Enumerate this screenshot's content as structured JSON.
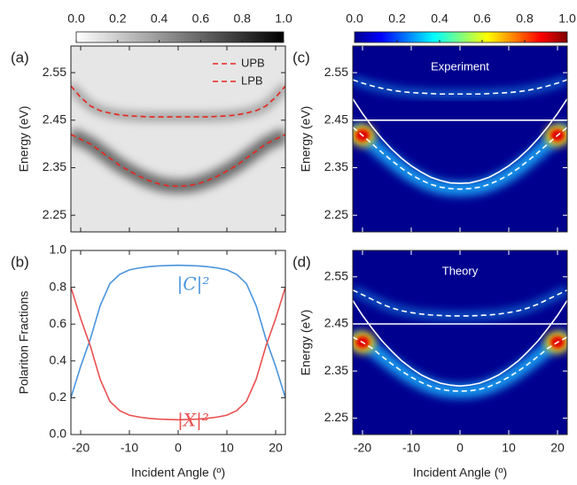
{
  "chart_data": [
    {
      "type": "heatmap",
      "panel_label": "(a)",
      "ylabel": "Energy (eV)",
      "colormap": "gray_r",
      "legend": "upper right",
      "colorbar_ticks": [
        {
          "value": 0,
          "label": "0.0"
        },
        {
          "value": 0.2,
          "label": "0.2"
        },
        {
          "value": 0.4,
          "label": "0.4"
        },
        {
          "value": 0.6,
          "label": "0.6"
        },
        {
          "value": 0.8,
          "label": "0.8"
        },
        {
          "value": 1,
          "label": "1.0"
        }
      ],
      "xlim": [
        -22,
        22
      ],
      "xticks": [
        -20,
        -10,
        0,
        10,
        20
      ],
      "show_xtick_labels": false,
      "ylim": [
        2.215,
        2.606
      ],
      "yticks": [
        2.25,
        2.35,
        2.45,
        2.55
      ],
      "x": [
        -22,
        -20,
        -18,
        -16,
        -14,
        -12,
        -10,
        -8,
        -6,
        -4,
        -2,
        0,
        2,
        4,
        6,
        8,
        10,
        12,
        14,
        16,
        18,
        20,
        22
      ],
      "series": [
        {
          "name": "UPB",
          "color": "#e8261e",
          "dash": true,
          "values": [
            2.522,
            2.498,
            2.48,
            2.47,
            2.465,
            2.461,
            2.459,
            2.458,
            2.457,
            2.457,
            2.457,
            2.457,
            2.457,
            2.457,
            2.457,
            2.458,
            2.459,
            2.461,
            2.465,
            2.47,
            2.48,
            2.498,
            2.522
          ]
        },
        {
          "name": "LPB",
          "color": "#e8261e",
          "dash": true,
          "values": [
            2.42,
            2.41,
            2.4,
            2.385,
            2.37,
            2.355,
            2.343,
            2.332,
            2.323,
            2.316,
            2.312,
            2.311,
            2.312,
            2.316,
            2.323,
            2.332,
            2.343,
            2.355,
            2.37,
            2.385,
            2.4,
            2.41,
            2.42
          ]
        }
      ]
    },
    {
      "type": "line",
      "panel_label": "(b)",
      "ylabel": "Polariton Fractions",
      "xlabel": "Incident Angle (º)",
      "xlim": [
        -22,
        22
      ],
      "xticks": [
        -20,
        -10,
        0,
        10,
        20
      ],
      "show_xtick_labels": true,
      "ylim": [
        0,
        1
      ],
      "yticks": [
        {
          "value": 0,
          "label": "0.0"
        },
        {
          "value": 0.2,
          "label": "0.2"
        },
        {
          "value": 0.4,
          "label": "0.4"
        },
        {
          "value": 0.6,
          "label": "0.6"
        },
        {
          "value": 0.8,
          "label": "0.8"
        },
        {
          "value": 1,
          "label": "1.0"
        }
      ],
      "x": [
        -22,
        -20,
        -18,
        -16,
        -14,
        -12,
        -10,
        -8,
        -6,
        -4,
        -2,
        0,
        2,
        4,
        6,
        8,
        10,
        12,
        14,
        16,
        18,
        20,
        22
      ],
      "series": [
        {
          "name": "|C|²",
          "color": "#4a94dc",
          "values": [
            0.2,
            0.37,
            0.52,
            0.7,
            0.82,
            0.87,
            0.895,
            0.905,
            0.912,
            0.916,
            0.918,
            0.92,
            0.918,
            0.916,
            0.912,
            0.905,
            0.895,
            0.87,
            0.82,
            0.7,
            0.52,
            0.37,
            0.2
          ]
        },
        {
          "name": "|X|²",
          "color": "#ea5050",
          "values": [
            0.8,
            0.63,
            0.48,
            0.3,
            0.18,
            0.13,
            0.105,
            0.095,
            0.088,
            0.084,
            0.082,
            0.08,
            0.082,
            0.084,
            0.088,
            0.095,
            0.105,
            0.13,
            0.18,
            0.3,
            0.48,
            0.63,
            0.8
          ]
        }
      ]
    },
    {
      "type": "heatmap",
      "panel_label": "(c)",
      "ylabel": "Energy (eV)",
      "colormap": "jet",
      "annotation": "Experiment",
      "colorbar_ticks": [
        {
          "value": 0,
          "label": "0.0"
        },
        {
          "value": 0.2,
          "label": "0.2"
        },
        {
          "value": 0.4,
          "label": "0.4"
        },
        {
          "value": 0.6,
          "label": "0.6"
        },
        {
          "value": 0.8,
          "label": "0.8"
        },
        {
          "value": 1,
          "label": "1.0"
        }
      ],
      "xlim": [
        -22,
        22
      ],
      "xticks": [
        -20,
        -10,
        0,
        10,
        20
      ],
      "show_xtick_labels": false,
      "ylim": [
        2.215,
        2.606
      ],
      "yticks": [
        2.25,
        2.35,
        2.45,
        2.55
      ],
      "x": [
        -22,
        -20,
        -18,
        -16,
        -14,
        -12,
        -10,
        -8,
        -6,
        -4,
        -2,
        0,
        2,
        4,
        6,
        8,
        10,
        12,
        14,
        16,
        18,
        20,
        22
      ],
      "series": [
        {
          "color": "#ffffff",
          "values": [
            2.45,
            2.45,
            2.45,
            2.45,
            2.45,
            2.45,
            2.45,
            2.45,
            2.45,
            2.45,
            2.45,
            2.45,
            2.45,
            2.45,
            2.45,
            2.45,
            2.45,
            2.45,
            2.45,
            2.45,
            2.45,
            2.45,
            2.45
          ]
        },
        {
          "color": "#ffffff",
          "values": [
            2.495,
            2.464,
            2.436,
            2.411,
            2.389,
            2.37,
            2.354,
            2.341,
            2.33,
            2.323,
            2.318,
            2.317,
            2.318,
            2.323,
            2.33,
            2.341,
            2.354,
            2.37,
            2.389,
            2.411,
            2.436,
            2.464,
            2.495
          ]
        },
        {
          "color": "#ffffff",
          "dash": true,
          "values": [
            2.535,
            2.528,
            2.522,
            2.517,
            2.513,
            2.51,
            2.508,
            2.507,
            2.506,
            2.505,
            2.505,
            2.505,
            2.505,
            2.505,
            2.506,
            2.507,
            2.508,
            2.51,
            2.513,
            2.517,
            2.522,
            2.528,
            2.535
          ]
        },
        {
          "color": "#ffffff",
          "dash": true,
          "values": [
            2.435,
            2.418,
            2.4,
            2.382,
            2.365,
            2.349,
            2.335,
            2.324,
            2.315,
            2.309,
            2.306,
            2.305,
            2.306,
            2.309,
            2.315,
            2.324,
            2.335,
            2.349,
            2.365,
            2.382,
            2.4,
            2.418,
            2.435
          ]
        }
      ]
    },
    {
      "type": "heatmap",
      "panel_label": "(d)",
      "ylabel": "Energy (eV)",
      "xlabel": "Incident Angle (º)",
      "colormap": "jet",
      "annotation": "Theory",
      "xlim": [
        -22,
        22
      ],
      "xticks": [
        -20,
        -10,
        0,
        10,
        20
      ],
      "show_xtick_labels": true,
      "ylim": [
        2.215,
        2.606
      ],
      "yticks": [
        2.25,
        2.35,
        2.45,
        2.55
      ],
      "x": [
        -22,
        -20,
        -18,
        -16,
        -14,
        -12,
        -10,
        -8,
        -6,
        -4,
        -2,
        0,
        2,
        4,
        6,
        8,
        10,
        12,
        14,
        16,
        18,
        20,
        22
      ],
      "series": [
        {
          "color": "#ffffff",
          "values": [
            2.45,
            2.45,
            2.45,
            2.45,
            2.45,
            2.45,
            2.45,
            2.45,
            2.45,
            2.45,
            2.45,
            2.45,
            2.45,
            2.45,
            2.45,
            2.45,
            2.45,
            2.45,
            2.45,
            2.45,
            2.45,
            2.45,
            2.45
          ]
        },
        {
          "color": "#ffffff",
          "values": [
            2.5,
            2.468,
            2.44,
            2.414,
            2.392,
            2.372,
            2.356,
            2.342,
            2.332,
            2.324,
            2.32,
            2.318,
            2.32,
            2.324,
            2.332,
            2.342,
            2.356,
            2.372,
            2.392,
            2.414,
            2.44,
            2.468,
            2.5
          ]
        },
        {
          "color": "#ffffff",
          "dash": true,
          "values": [
            2.522,
            2.512,
            2.502,
            2.492,
            2.484,
            2.478,
            2.474,
            2.471,
            2.469,
            2.468,
            2.467,
            2.467,
            2.467,
            2.468,
            2.469,
            2.471,
            2.474,
            2.478,
            2.484,
            2.492,
            2.502,
            2.512,
            2.522
          ]
        },
        {
          "color": "#ffffff",
          "dash": true,
          "values": [
            2.422,
            2.411,
            2.398,
            2.381,
            2.365,
            2.35,
            2.337,
            2.326,
            2.317,
            2.311,
            2.308,
            2.307,
            2.308,
            2.311,
            2.317,
            2.326,
            2.337,
            2.35,
            2.365,
            2.381,
            2.398,
            2.411,
            2.422
          ]
        }
      ]
    }
  ]
}
